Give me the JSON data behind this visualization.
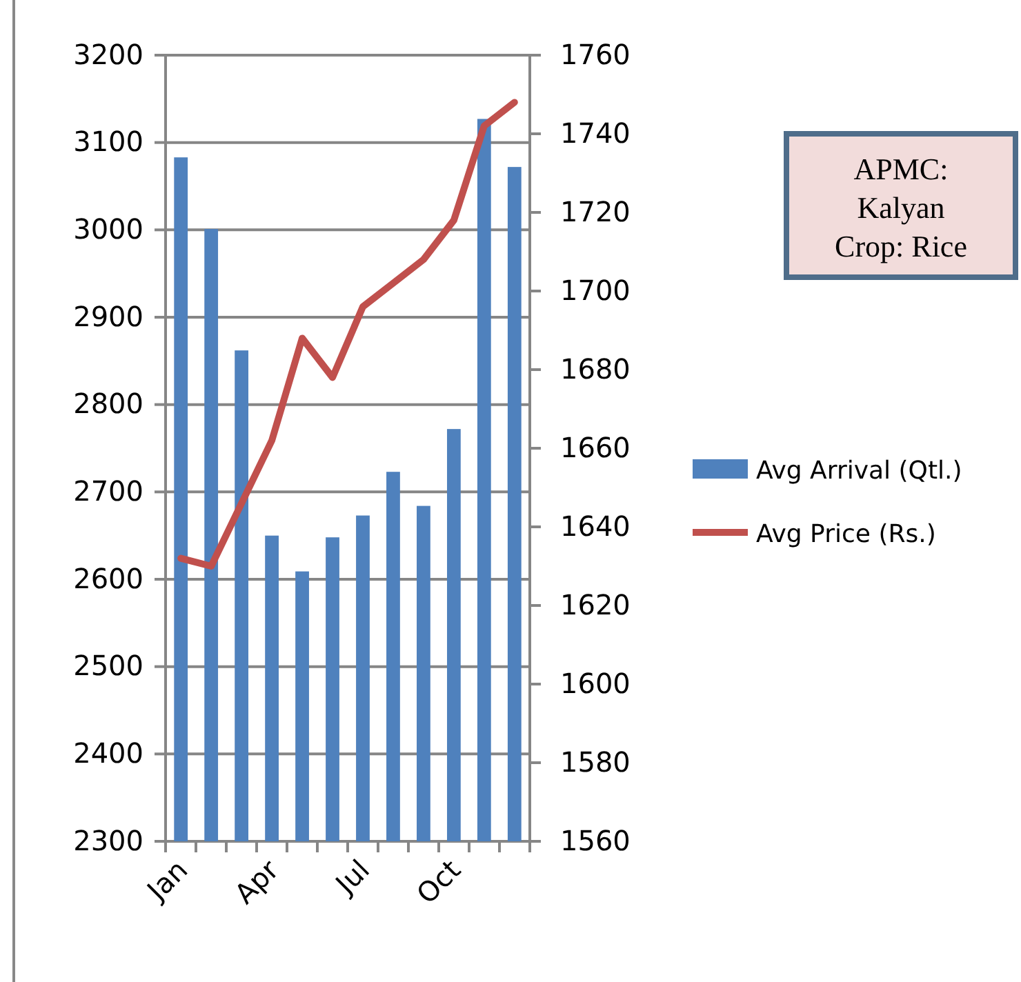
{
  "chart_data": {
    "type": "bar",
    "categories": [
      "Jan",
      null,
      null,
      "Apr",
      null,
      null,
      "Jul",
      null,
      null,
      "Oct",
      null,
      null
    ],
    "series": [
      {
        "name": "Avg Arrival (Qtl.)",
        "color": "#4f81bd",
        "values": [
          3083,
          3001,
          2862,
          2650,
          2609,
          2648,
          2673,
          2723,
          2684,
          2772,
          3127,
          3072
        ]
      },
      {
        "name": "Avg Price (Rs.)",
        "type": "line",
        "axis": "y2",
        "color": "#c0504d",
        "values": [
          1632,
          1630,
          1646,
          1662,
          1688,
          1678,
          1696,
          1702,
          1708,
          1718,
          1742,
          1748
        ]
      }
    ],
    "ylim": [
      2300,
      3200
    ],
    "yticks": [
      2300,
      2400,
      2500,
      2600,
      2700,
      2800,
      2900,
      3000,
      3100,
      3200
    ],
    "y2lim": [
      1560,
      1760
    ],
    "y2ticks": [
      1560,
      1580,
      1600,
      1620,
      1640,
      1660,
      1680,
      1700,
      1720,
      1740,
      1760
    ],
    "grid": "y",
    "legend": "right",
    "marker": "none",
    "annotations": [
      "APMC: Kalyan Crop: Rice"
    ]
  }
}
